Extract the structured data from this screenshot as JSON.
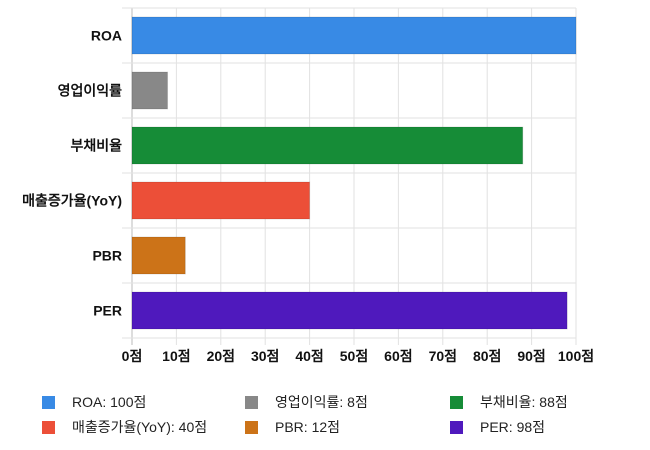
{
  "chart_data": {
    "type": "bar",
    "orientation": "horizontal",
    "categories": [
      "ROA",
      "영업이익률",
      "부채비율",
      "매출증가율(YoY)",
      "PBR",
      "PER"
    ],
    "values": [
      100,
      8,
      88,
      40,
      12,
      98
    ],
    "colors": [
      "#388ae5",
      "#888888",
      "#168c37",
      "#ec4f38",
      "#cc7318",
      "#4f19bd"
    ],
    "xlim": [
      0,
      100
    ],
    "xticks": [
      0,
      10,
      20,
      30,
      40,
      50,
      60,
      70,
      80,
      90,
      100
    ],
    "tick_suffix": "점",
    "grid": true,
    "legend_position": "bottom",
    "legend": [
      "ROA: 100점",
      "영업이익률: 8점",
      "부채비율: 88점",
      "매출증가율(YoY): 40점",
      "PBR: 12점",
      "PER: 98점"
    ]
  }
}
